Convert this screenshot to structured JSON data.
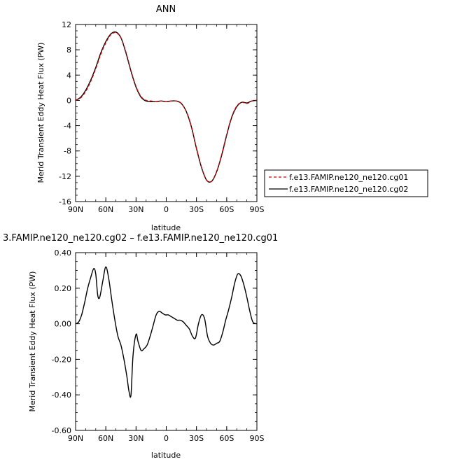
{
  "chart_data": [
    {
      "type": "line",
      "title": "ANN",
      "xlabel": "latitude",
      "ylabel": "Merid Transient Eddy Heat Flux (PW)",
      "xlim": [
        90,
        -90
      ],
      "ylim": [
        -16,
        12
      ],
      "x_ticks": [
        {
          "value": 90,
          "label": "90N"
        },
        {
          "value": 60,
          "label": "60N"
        },
        {
          "value": 30,
          "label": "30N"
        },
        {
          "value": 0,
          "label": "0"
        },
        {
          "value": -30,
          "label": "30S"
        },
        {
          "value": -60,
          "label": "60S"
        },
        {
          "value": -90,
          "label": "90S"
        }
      ],
      "y_ticks": [
        {
          "value": 12,
          "label": "12"
        },
        {
          "value": 8,
          "label": "8"
        },
        {
          "value": 4,
          "label": "4"
        },
        {
          "value": 0,
          "label": "0"
        },
        {
          "value": -4,
          "label": "-4"
        },
        {
          "value": -8,
          "label": "-8"
        },
        {
          "value": -12,
          "label": "-12"
        },
        {
          "value": -16,
          "label": "-16"
        }
      ],
      "legend_position": "right",
      "x": [
        90,
        85,
        80,
        75,
        70,
        65,
        60,
        55,
        50,
        45,
        40,
        35,
        30,
        25,
        20,
        15,
        10,
        5,
        0,
        -5,
        -10,
        -15,
        -20,
        -25,
        -30,
        -35,
        -40,
        -45,
        -50,
        -55,
        -60,
        -65,
        -70,
        -75,
        -80,
        -85,
        -90
      ],
      "series": [
        {
          "name": "f.e13.FAMIP.ne120_ne120.cg01",
          "color": "#cc0000",
          "dash": "dashed",
          "values": [
            0,
            0.4,
            1.4,
            3.0,
            5.0,
            7.3,
            9.1,
            10.4,
            10.7,
            9.9,
            7.6,
            4.7,
            2.2,
            0.6,
            0.0,
            -0.1,
            -0.2,
            -0.1,
            -0.2,
            -0.1,
            -0.1,
            -0.5,
            -1.8,
            -4.2,
            -7.6,
            -10.6,
            -12.6,
            -12.8,
            -11.3,
            -8.6,
            -5.4,
            -2.6,
            -0.9,
            -0.3,
            -0.5,
            -0.1,
            0
          ]
        },
        {
          "name": "f.e13.FAMIP.ne120_ne120.cg02",
          "color": "#000000",
          "dash": "solid",
          "values": [
            0,
            0.5,
            1.6,
            3.2,
            5.2,
            7.5,
            9.3,
            10.5,
            10.8,
            9.9,
            7.5,
            4.6,
            2.1,
            0.5,
            -0.1,
            -0.2,
            -0.2,
            -0.1,
            -0.2,
            -0.1,
            -0.1,
            -0.5,
            -1.8,
            -4.2,
            -7.6,
            -10.6,
            -12.6,
            -12.8,
            -11.3,
            -8.7,
            -5.5,
            -2.7,
            -1.0,
            -0.3,
            -0.4,
            -0.1,
            0
          ]
        }
      ]
    },
    {
      "type": "line",
      "title": "3.FAMIP.ne120_ne120.cg02 – f.e13.FAMIP.ne120_ne120.cg01",
      "xlabel": "latitude",
      "ylabel": "Merid Transient Eddy Heat Flux (PW)",
      "xlim": [
        90,
        -90
      ],
      "ylim": [
        -0.6,
        0.4
      ],
      "x_ticks": [
        {
          "value": 90,
          "label": "90N"
        },
        {
          "value": 60,
          "label": "60N"
        },
        {
          "value": 30,
          "label": "30N"
        },
        {
          "value": 0,
          "label": "0"
        },
        {
          "value": -30,
          "label": "30S"
        },
        {
          "value": -60,
          "label": "60S"
        },
        {
          "value": -90,
          "label": "90S"
        }
      ],
      "y_ticks": [
        {
          "value": 0.4,
          "label": "0.40"
        },
        {
          "value": 0.2,
          "label": "0.20"
        },
        {
          "value": 0.0,
          "label": "0.00"
        },
        {
          "value": -0.2,
          "label": "-0.20"
        },
        {
          "value": -0.4,
          "label": "-0.40"
        },
        {
          "value": -0.6,
          "label": "-0.60"
        }
      ],
      "x": [
        90,
        87,
        84,
        81,
        78,
        75,
        72,
        70,
        68,
        66,
        63,
        60,
        57,
        54,
        51,
        48,
        45,
        42,
        39,
        37,
        35,
        33,
        30,
        28,
        25,
        22,
        19,
        16,
        13,
        10,
        7,
        4,
        1,
        -2,
        -5,
        -8,
        -11,
        -14,
        -17,
        -20,
        -23,
        -26,
        -29,
        -32,
        -35,
        -38,
        -41,
        -44,
        -47,
        -50,
        -53,
        -56,
        -59,
        -62,
        -65,
        -68,
        -71,
        -74,
        -77,
        -80,
        -83,
        -86,
        -90
      ],
      "series": [
        {
          "name": "",
          "color": "#000000",
          "dash": "solid",
          "values": [
            0.0,
            0.01,
            0.05,
            0.12,
            0.2,
            0.26,
            0.31,
            0.28,
            0.16,
            0.15,
            0.24,
            0.32,
            0.25,
            0.13,
            0.02,
            -0.07,
            -0.12,
            -0.2,
            -0.3,
            -0.38,
            -0.4,
            -0.18,
            -0.06,
            -0.1,
            -0.15,
            -0.14,
            -0.12,
            -0.07,
            -0.01,
            0.05,
            0.07,
            0.06,
            0.05,
            0.05,
            0.04,
            0.03,
            0.02,
            0.02,
            0.01,
            -0.01,
            -0.03,
            -0.07,
            -0.08,
            0.0,
            0.05,
            0.03,
            -0.07,
            -0.11,
            -0.12,
            -0.11,
            -0.1,
            -0.05,
            0.02,
            0.08,
            0.15,
            0.23,
            0.28,
            0.27,
            0.22,
            0.15,
            0.07,
            0.01,
            0.0
          ]
        }
      ]
    }
  ]
}
